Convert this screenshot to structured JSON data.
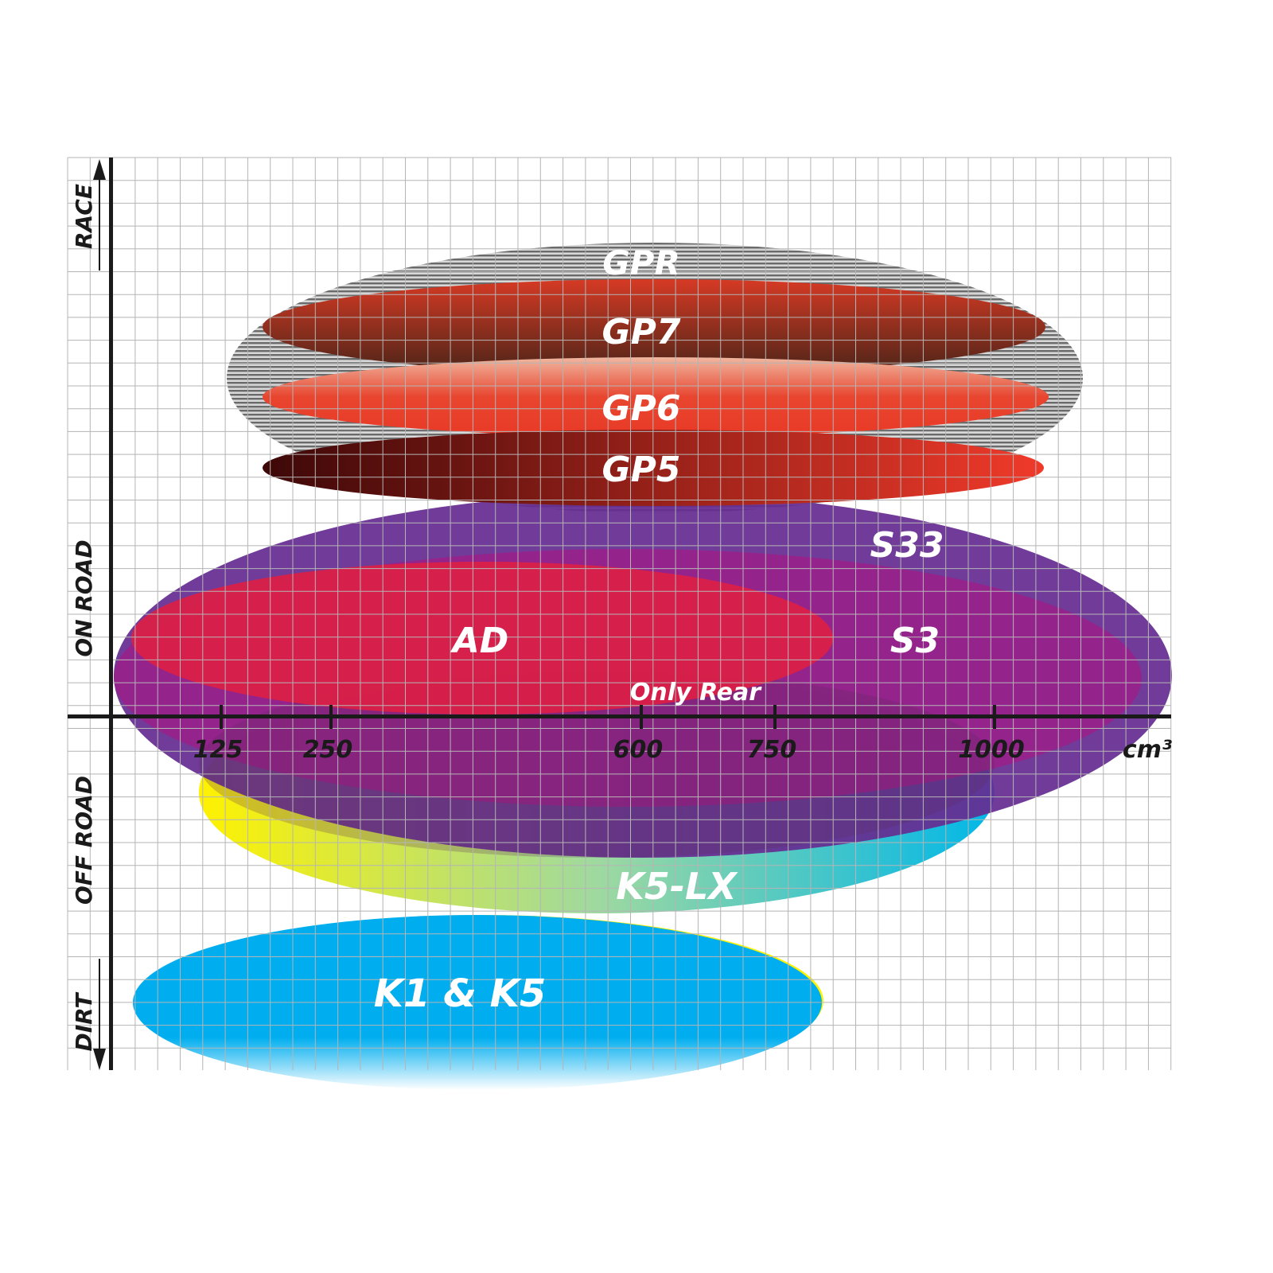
{
  "axis": {
    "x_ticks": [
      "125",
      "250",
      "600",
      "750",
      "1000"
    ],
    "x_unit": "cm³",
    "y_zones": [
      "RACE",
      "ON ROAD",
      "OFF ROAD",
      "DIRT"
    ]
  },
  "products": [
    {
      "label": "GPR",
      "color": "#8c8c8c"
    },
    {
      "label": "GP7",
      "color": "#8b3a2a"
    },
    {
      "label": "GP6",
      "color": "#e8452f"
    },
    {
      "label": "GP5",
      "color": "#c42a1c"
    },
    {
      "label": "S33",
      "color": "#662d91"
    },
    {
      "label": "S3",
      "color": "#9b1f8a"
    },
    {
      "label": "AD",
      "color": "#dc1f45"
    },
    {
      "label": "Only Rear",
      "color": "#ffffff"
    },
    {
      "label": "K5-LX",
      "color": "#00b7e0"
    },
    {
      "label": "K1 & K5",
      "color": "#00aeef"
    }
  ]
}
